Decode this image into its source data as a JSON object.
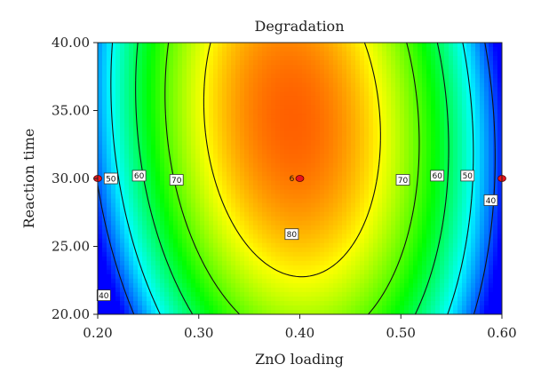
{
  "chart_data": {
    "type": "heatmap",
    "subtype": "contour",
    "title": "Degradation",
    "xlabel": "ZnO loading",
    "ylabel": "Reaction time",
    "xlim": [
      0.2,
      0.6
    ],
    "ylim": [
      20,
      40
    ],
    "x_ticks": [
      "0.20",
      "0.30",
      "0.40",
      "0.50",
      "0.60"
    ],
    "y_ticks": [
      "20.00",
      "25.00",
      "30.00",
      "35.00",
      "40.00"
    ],
    "colormap": [
      "#0000ff",
      "#00ffff",
      "#00ff00",
      "#ffff00",
      "#ff0000"
    ],
    "color_range": [
      35,
      95
    ],
    "contour_lines": [
      {
        "level": 40,
        "label": "40",
        "label_points": [
          {
            "x": 0.206,
            "y": 21.4
          },
          {
            "x": 0.589,
            "y": 28.4
          }
        ]
      },
      {
        "level": 50,
        "label": "50",
        "label_points": [
          {
            "x": 0.213,
            "y": 30.0
          },
          {
            "x": 0.566,
            "y": 30.2
          }
        ]
      },
      {
        "level": 60,
        "label": "60",
        "label_points": [
          {
            "x": 0.241,
            "y": 30.2
          },
          {
            "x": 0.536,
            "y": 30.2
          }
        ]
      },
      {
        "level": 70,
        "label": "70",
        "label_points": [
          {
            "x": 0.278,
            "y": 29.9
          },
          {
            "x": 0.502,
            "y": 29.9
          }
        ]
      },
      {
        "level": 80,
        "label": "80",
        "label_points": [
          {
            "x": 0.392,
            "y": 25.9
          }
        ]
      }
    ],
    "design_points": [
      {
        "x": 0.2,
        "y": 30.0,
        "label": ""
      },
      {
        "x": 0.4,
        "y": 30.0,
        "label": "6"
      },
      {
        "x": 0.6,
        "y": 30.0,
        "label": ""
      }
    ],
    "grid": false
  }
}
